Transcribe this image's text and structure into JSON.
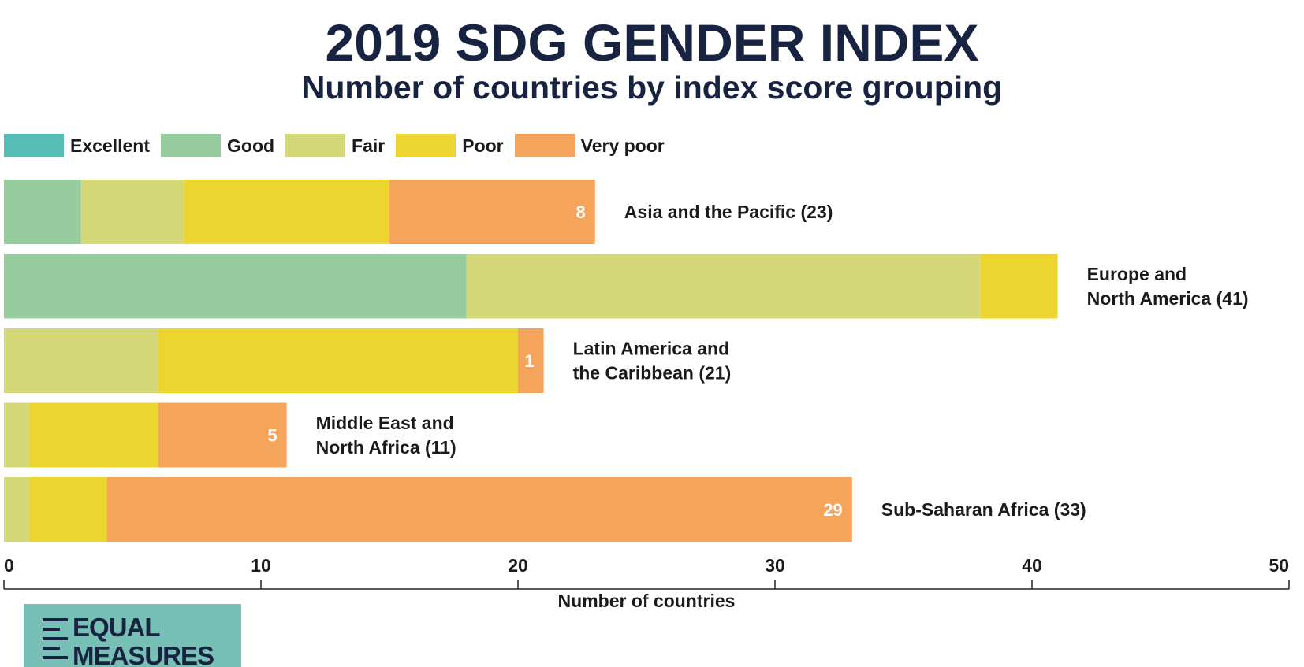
{
  "header": {
    "title": "2019 SDG GENDER INDEX",
    "subtitle": "Number of countries by index score grouping"
  },
  "legend": [
    {
      "label": "Excellent",
      "color": "#56bcb6"
    },
    {
      "label": "Good",
      "color": "#97cc9e"
    },
    {
      "label": "Fair",
      "color": "#d4d878"
    },
    {
      "label": "Poor",
      "color": "#edd52f"
    },
    {
      "label": "Very poor",
      "color": "#f4a55b"
    }
  ],
  "chart_data": {
    "type": "bar",
    "orientation": "horizontal",
    "stacked": true,
    "title": "2019 SDG GENDER INDEX",
    "subtitle": "Number of countries by index score grouping",
    "xlabel": "Number of countries",
    "ylabel": "",
    "xlim": [
      0,
      50
    ],
    "xticks": [
      0,
      10,
      20,
      30,
      40,
      50
    ],
    "grid": false,
    "legend_position": "top-left",
    "categories": [
      {
        "label_lines": [
          "Asia and the Pacific (23)"
        ]
      },
      {
        "label_lines": [
          "Europe and",
          "North America (41)"
        ]
      },
      {
        "label_lines": [
          "Latin America and",
          "the Caribbean (21)"
        ]
      },
      {
        "label_lines": [
          "Middle East and",
          "North Africa (11)"
        ]
      },
      {
        "label_lines": [
          "Sub-Saharan Africa (33)"
        ]
      }
    ],
    "series": [
      {
        "name": "Excellent",
        "color": "#56bcb6",
        "values": [
          0,
          0,
          0,
          0,
          0
        ]
      },
      {
        "name": "Good",
        "color": "#97cc9e",
        "values": [
          3,
          18,
          0,
          0,
          0
        ]
      },
      {
        "name": "Fair",
        "color": "#d4d878",
        "values": [
          4,
          20,
          6,
          1,
          1
        ]
      },
      {
        "name": "Poor",
        "color": "#edd52f",
        "values": [
          8,
          3,
          14,
          5,
          3
        ]
      },
      {
        "name": "Very poor",
        "color": "#f4a55b",
        "values": [
          8,
          0,
          1,
          5,
          29
        ]
      }
    ],
    "data_labels": [
      {
        "category": 0,
        "series": "Very poor",
        "text": "8"
      },
      {
        "category": 2,
        "series": "Very poor",
        "text": "1"
      },
      {
        "category": 3,
        "series": "Very poor",
        "text": "5"
      },
      {
        "category": 4,
        "series": "Very poor",
        "text": "29"
      }
    ]
  },
  "logo": {
    "line1": "EQUAL",
    "line2": "MEASURES"
  }
}
